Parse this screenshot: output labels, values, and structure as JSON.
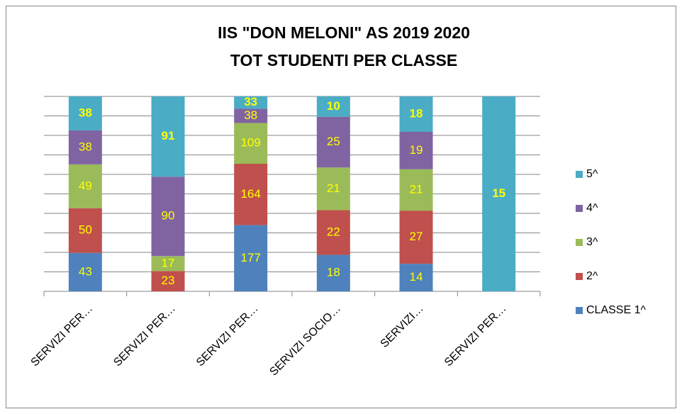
{
  "chart_data": {
    "type": "stacked_bar_percent",
    "title": [
      "IIS \"DON MELONI\" AS 2019 2020",
      "TOT STUDENTI PER CLASSE"
    ],
    "categories": [
      "SERVIZI PER…",
      "SERVIZI PER…",
      "SERVIZI PER…",
      "SERVIZI SOCIO…",
      "SERVIZI…",
      "SERVIZI PER…"
    ],
    "series": [
      {
        "name": "CLASSE 1^",
        "color": "#4f81bd",
        "values": [
          43,
          null,
          177,
          18,
          14,
          null
        ]
      },
      {
        "name": "2^",
        "color": "#c0504d",
        "values": [
          50,
          23,
          164,
          22,
          27,
          null
        ]
      },
      {
        "name": "3^",
        "color": "#9bbb59",
        "values": [
          49,
          17,
          109,
          21,
          21,
          null
        ]
      },
      {
        "name": "4^",
        "color": "#8064a2",
        "values": [
          38,
          90,
          38,
          25,
          19,
          null
        ]
      },
      {
        "name": "5^",
        "color": "#4bacc6",
        "values": [
          38,
          91,
          33,
          10,
          18,
          15
        ]
      }
    ],
    "label_color": "#ffff00",
    "ylim": [
      0,
      100
    ],
    "yticks": [
      0,
      10,
      20,
      30,
      40,
      50,
      60,
      70,
      80,
      90,
      100
    ],
    "grid": true,
    "legend": "right"
  }
}
